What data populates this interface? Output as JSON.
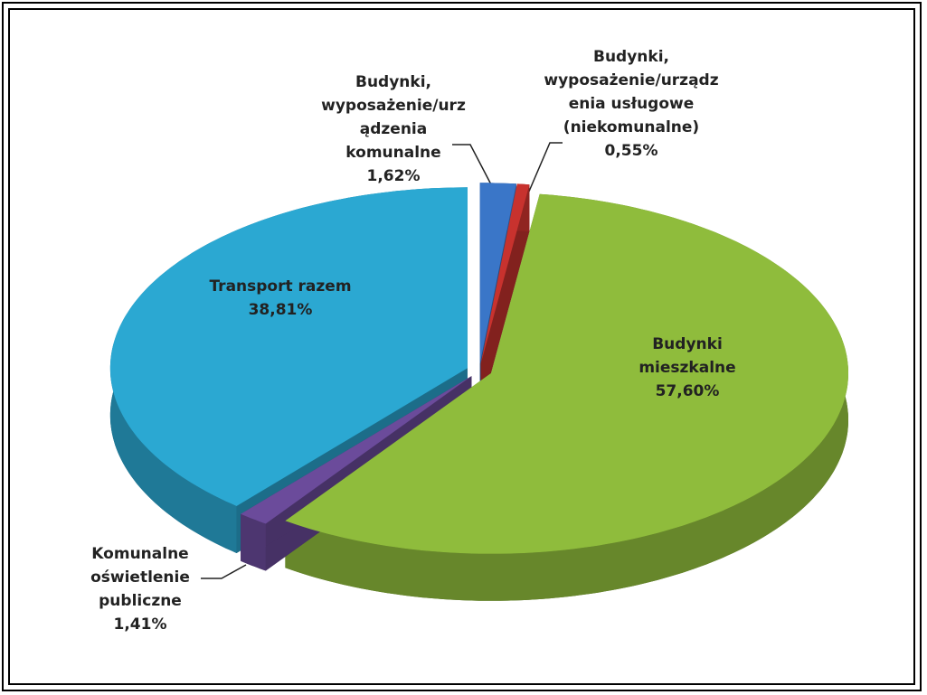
{
  "chart_data": {
    "type": "pie3d",
    "categories": [
      "Budynki, wyposażenie/urządzenia komunalne",
      "Budynki, wyposażenie/urządzenia usługowe (niekomunalne)",
      "Budynki mieszkalne",
      "Komunalne oświetlenie publiczne",
      "Transport razem"
    ],
    "values": [
      1.62,
      0.55,
      57.6,
      1.41,
      38.81
    ],
    "value_labels": [
      "1,62%",
      "0,55%",
      "57,60%",
      "1,41%",
      "38,81%"
    ],
    "colors": [
      "#3a76c8",
      "#c8322e",
      "#8fbc3c",
      "#6b4b9b",
      "#2ba8d2"
    ]
  }
}
